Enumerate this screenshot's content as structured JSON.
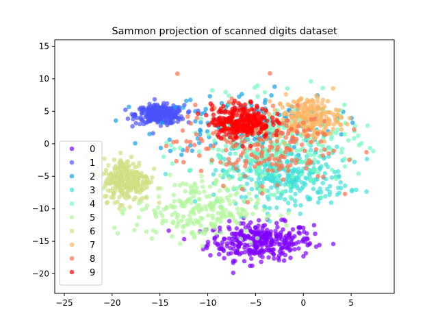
{
  "chart_data": {
    "type": "scatter",
    "title": "Sammon projection of scanned digits dataset",
    "xlabel": "",
    "ylabel": "",
    "xlim": [
      -26,
      9.5
    ],
    "ylim": [
      -23,
      16
    ],
    "xticks": [
      -25,
      -20,
      -15,
      -10,
      -5,
      0,
      5
    ],
    "yticks": [
      -20,
      -15,
      -10,
      -5,
      0,
      5,
      10,
      15
    ],
    "grid": false,
    "legend_position": "left",
    "marker_alpha": 0.7,
    "series": [
      {
        "name": "0",
        "color": "#8000ff",
        "center": [
          -4.5,
          -15.0
        ],
        "spread": [
          5.0,
          2.6
        ],
        "count": 320
      },
      {
        "name": "1",
        "color": "#4a53fb",
        "center": [
          -15.0,
          4.5
        ],
        "spread": [
          2.3,
          1.3
        ],
        "count": 300
      },
      {
        "name": "2",
        "color": "#12a1ea",
        "center": [
          -6.0,
          3.0
        ],
        "spread": [
          8.5,
          4.5
        ],
        "count": 160
      },
      {
        "name": "3",
        "color": "#3fe0d8",
        "center": [
          -2.0,
          -5.0
        ],
        "spread": [
          6.0,
          4.0
        ],
        "count": 320
      },
      {
        "name": "4",
        "color": "#71fbbd",
        "center": [
          -3.0,
          0.0
        ],
        "spread": [
          8.0,
          6.0
        ],
        "count": 300
      },
      {
        "name": "5",
        "color": "#b1f79a",
        "center": [
          -11.0,
          -10.0
        ],
        "spread": [
          6.0,
          4.5
        ],
        "count": 240
      },
      {
        "name": "6",
        "color": "#d2de81",
        "center": [
          -18.5,
          -5.5
        ],
        "spread": [
          2.2,
          3.0
        ],
        "count": 260
      },
      {
        "name": "7",
        "color": "#ffb360",
        "center": [
          0.5,
          4.0
        ],
        "spread": [
          3.0,
          3.0
        ],
        "count": 200
      },
      {
        "name": "8",
        "color": "#ff6e4c",
        "center": [
          -5.0,
          0.0
        ],
        "spread": [
          7.5,
          5.5
        ],
        "count": 220
      },
      {
        "name": "9",
        "color": "#ff0000",
        "center": [
          -6.5,
          3.5
        ],
        "spread": [
          2.8,
          2.3
        ],
        "count": 260
      }
    ]
  }
}
